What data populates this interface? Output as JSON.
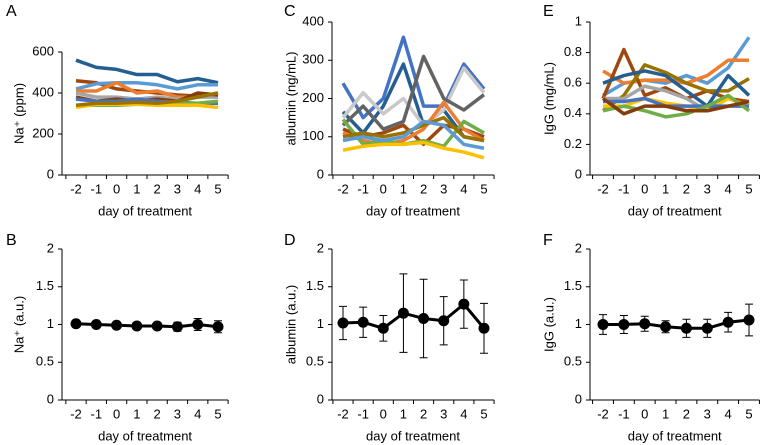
{
  "chart_data": [
    {
      "type": "line",
      "label": "A",
      "ylabel": "Na⁺ (ppm)",
      "xlabel": "day of treatment",
      "categories": [
        "-2",
        "-1",
        "0",
        "1",
        "2",
        "3",
        "4",
        "5"
      ],
      "ylim": [
        0,
        600
      ],
      "yticks": [
        0,
        200,
        400,
        600
      ],
      "series": [
        {
          "color": "#255e91",
          "values": [
            560,
            525,
            515,
            490,
            490,
            455,
            470,
            450
          ]
        },
        {
          "color": "#9e480e",
          "values": [
            460,
            450,
            420,
            410,
            400,
            390,
            385,
            385
          ]
        },
        {
          "color": "#5b9bd5",
          "values": [
            420,
            445,
            450,
            450,
            440,
            420,
            440,
            440
          ]
        },
        {
          "color": "#ed7d31",
          "values": [
            410,
            410,
            450,
            400,
            410,
            380,
            380,
            400
          ]
        },
        {
          "color": "#a5a5a5",
          "values": [
            400,
            380,
            380,
            370,
            380,
            370,
            380,
            380
          ]
        },
        {
          "color": "#843c0c",
          "values": [
            380,
            360,
            370,
            360,
            370,
            360,
            400,
            390
          ]
        },
        {
          "color": "#4472c4",
          "values": [
            370,
            360,
            360,
            370,
            360,
            355,
            350,
            350
          ]
        },
        {
          "color": "#70ad47",
          "values": [
            340,
            340,
            340,
            345,
            350,
            350,
            350,
            360
          ]
        },
        {
          "color": "#ffc000",
          "values": [
            330,
            345,
            345,
            345,
            340,
            340,
            340,
            330
          ]
        },
        {
          "color": "#997300",
          "values": [
            340,
            350,
            350,
            355,
            350,
            360,
            380,
            400
          ]
        }
      ]
    },
    {
      "type": "line",
      "label": "C",
      "ylabel": "albumin (ng/mL)",
      "xlabel": "day of treatment",
      "categories": [
        "-2",
        "-1",
        "0",
        "1",
        "2",
        "3",
        "4",
        "5"
      ],
      "ylim": [
        0,
        400
      ],
      "yticks": [
        0,
        100,
        200,
        300,
        400
      ],
      "series": [
        {
          "color": "#4472c4",
          "values": [
            240,
            150,
            200,
            360,
            180,
            180,
            290,
            225
          ]
        },
        {
          "color": "#255e91",
          "values": [
            165,
            110,
            180,
            290,
            130,
            170,
            100,
            90
          ]
        },
        {
          "color": "#c9c9c9",
          "values": [
            150,
            215,
            160,
            200,
            130,
            170,
            280,
            215
          ]
        },
        {
          "color": "#636363",
          "values": [
            130,
            180,
            120,
            140,
            310,
            200,
            170,
            210
          ]
        },
        {
          "color": "#9e480e",
          "values": [
            120,
            100,
            110,
            130,
            80,
            130,
            120,
            100
          ]
        },
        {
          "color": "#ed7d31",
          "values": [
            110,
            90,
            80,
            90,
            120,
            190,
            120,
            90
          ]
        },
        {
          "color": "#70ad47",
          "values": [
            145,
            80,
            90,
            80,
            90,
            75,
            140,
            110
          ]
        },
        {
          "color": "#997300",
          "values": [
            100,
            110,
            100,
            110,
            130,
            150,
            100,
            90
          ]
        },
        {
          "color": "#5b9bd5",
          "values": [
            90,
            100,
            90,
            100,
            140,
            130,
            80,
            70
          ]
        },
        {
          "color": "#ffc000",
          "values": [
            65,
            75,
            80,
            80,
            85,
            70,
            60,
            45
          ]
        }
      ]
    },
    {
      "type": "line",
      "label": "E",
      "ylabel": "IgG (mg/mL)",
      "xlabel": "day of treatment",
      "categories": [
        "-2",
        "-1",
        "0",
        "1",
        "2",
        "3",
        "4",
        "5"
      ],
      "ylim": [
        0,
        1
      ],
      "yticks": [
        0,
        0.2,
        0.4,
        0.6,
        0.8,
        1
      ],
      "series": [
        {
          "color": "#5b9bd5",
          "values": [
            0.52,
            0.6,
            0.62,
            0.6,
            0.65,
            0.6,
            0.7,
            0.9
          ]
        },
        {
          "color": "#ed7d31",
          "values": [
            0.68,
            0.6,
            0.62,
            0.62,
            0.6,
            0.65,
            0.75,
            0.75
          ]
        },
        {
          "color": "#9e480e",
          "values": [
            0.5,
            0.82,
            0.52,
            0.57,
            0.5,
            0.55,
            0.5,
            0.48
          ]
        },
        {
          "color": "#997300",
          "values": [
            0.42,
            0.52,
            0.72,
            0.67,
            0.6,
            0.55,
            0.55,
            0.63
          ]
        },
        {
          "color": "#255e91",
          "values": [
            0.6,
            0.65,
            0.68,
            0.65,
            0.55,
            0.45,
            0.65,
            0.52
          ]
        },
        {
          "color": "#ffc000",
          "values": [
            0.45,
            0.45,
            0.5,
            0.47,
            0.45,
            0.42,
            0.5,
            0.45
          ]
        },
        {
          "color": "#a5a5a5",
          "values": [
            0.5,
            0.5,
            0.58,
            0.55,
            0.5,
            0.42,
            0.45,
            0.48
          ]
        },
        {
          "color": "#4472c4",
          "values": [
            0.48,
            0.48,
            0.5,
            0.45,
            0.45,
            0.45,
            0.45,
            0.45
          ]
        },
        {
          "color": "#70ad47",
          "values": [
            0.42,
            0.45,
            0.42,
            0.38,
            0.4,
            0.45,
            0.52,
            0.42
          ]
        },
        {
          "color": "#843c0c",
          "values": [
            0.5,
            0.4,
            0.45,
            0.45,
            0.42,
            0.42,
            0.45,
            0.48
          ]
        }
      ]
    },
    {
      "type": "line",
      "label": "B",
      "ylabel": "Na⁺ (a.u.)",
      "xlabel": "day of treatment",
      "categories": [
        "-2",
        "-1",
        "0",
        "1",
        "2",
        "3",
        "4",
        "5"
      ],
      "ylim": [
        0,
        2
      ],
      "yticks": [
        0,
        0.5,
        1,
        1.5,
        2
      ],
      "series": [
        {
          "color": "#000000",
          "values": [
            1.01,
            1.0,
            0.99,
            0.98,
            0.98,
            0.97,
            1.0,
            0.97
          ],
          "errors": [
            0.04,
            0.03,
            0.03,
            0.03,
            0.03,
            0.06,
            0.08,
            0.08
          ]
        }
      ]
    },
    {
      "type": "line",
      "label": "D",
      "ylabel": "albumin (a.u.)",
      "xlabel": "day of treatment",
      "categories": [
        "-2",
        "-1",
        "0",
        "1",
        "2",
        "3",
        "4",
        "5"
      ],
      "ylim": [
        0,
        2
      ],
      "yticks": [
        0,
        0.5,
        1,
        1.5,
        2
      ],
      "series": [
        {
          "color": "#000000",
          "values": [
            1.02,
            1.03,
            0.95,
            1.15,
            1.08,
            1.05,
            1.27,
            0.95
          ],
          "errors": [
            0.22,
            0.2,
            0.17,
            0.52,
            0.52,
            0.32,
            0.32,
            0.33
          ]
        }
      ]
    },
    {
      "type": "line",
      "label": "F",
      "ylabel": "IgG (a.u.)",
      "xlabel": "day of treatment",
      "categories": [
        "-2",
        "-1",
        "0",
        "1",
        "2",
        "3",
        "4",
        "5"
      ],
      "ylim": [
        0,
        2
      ],
      "yticks": [
        0,
        0.5,
        1,
        1.5,
        2
      ],
      "series": [
        {
          "color": "#000000",
          "values": [
            1.0,
            1.0,
            1.01,
            0.97,
            0.95,
            0.95,
            1.03,
            1.06
          ],
          "errors": [
            0.13,
            0.12,
            0.1,
            0.08,
            0.12,
            0.12,
            0.13,
            0.21
          ]
        }
      ]
    }
  ]
}
